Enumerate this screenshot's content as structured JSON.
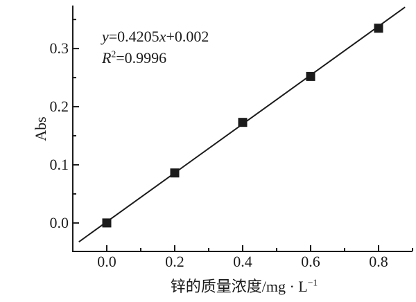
{
  "figure": {
    "background_color": "#ffffff",
    "ink_color": "#1b1b1b"
  },
  "chart_data": {
    "type": "scatter",
    "title": "",
    "xlabel": "锌的质量浓度/mg · L⁻¹",
    "xlabel_segments": [
      {
        "text": "锌的质量浓度/mg · L"
      },
      {
        "text": "−1",
        "sup": true
      }
    ],
    "ylabel": "Abs",
    "x": [
      0.0,
      0.2,
      0.4,
      0.6,
      0.8
    ],
    "y": [
      0.0,
      0.086,
      0.173,
      0.252,
      0.335
    ],
    "marker": "filled-square",
    "fit_line": {
      "equation": "y=0.4205x+0.002",
      "slope": 0.4205,
      "intercept": 0.002,
      "r_squared": 0.9996,
      "x_start": -0.082,
      "x_end": 0.878
    },
    "annotation_lines": [
      {
        "text": "y=0.4205x+0.002",
        "segments": [
          {
            "text": "y",
            "italic": true
          },
          {
            "text": "=0.4205"
          },
          {
            "text": "x",
            "italic": true
          },
          {
            "text": "+0.002"
          }
        ]
      },
      {
        "text": "R²=0.9996",
        "segments": [
          {
            "text": "R",
            "italic": true
          },
          {
            "text": "2",
            "sup": true
          },
          {
            "text": "=0.9996"
          }
        ]
      }
    ],
    "xlim": [
      -0.1,
      0.9
    ],
    "ylim": [
      -0.049,
      0.374
    ],
    "x_major_ticks": [
      0.0,
      0.2,
      0.4,
      0.6,
      0.8
    ],
    "x_tick_labels": [
      "0.0",
      "0.2",
      "0.4",
      "0.6",
      "0.8"
    ],
    "x_minor_ticks": [
      0.1,
      0.3,
      0.5,
      0.7,
      0.9
    ],
    "y_major_ticks": [
      0.0,
      0.1,
      0.2,
      0.3
    ],
    "y_tick_labels": [
      "0.0",
      "0.1",
      "0.2",
      "0.3"
    ],
    "y_minor_ticks": [
      0.05,
      0.15,
      0.25,
      0.35
    ],
    "grid": false,
    "legend": false
  }
}
